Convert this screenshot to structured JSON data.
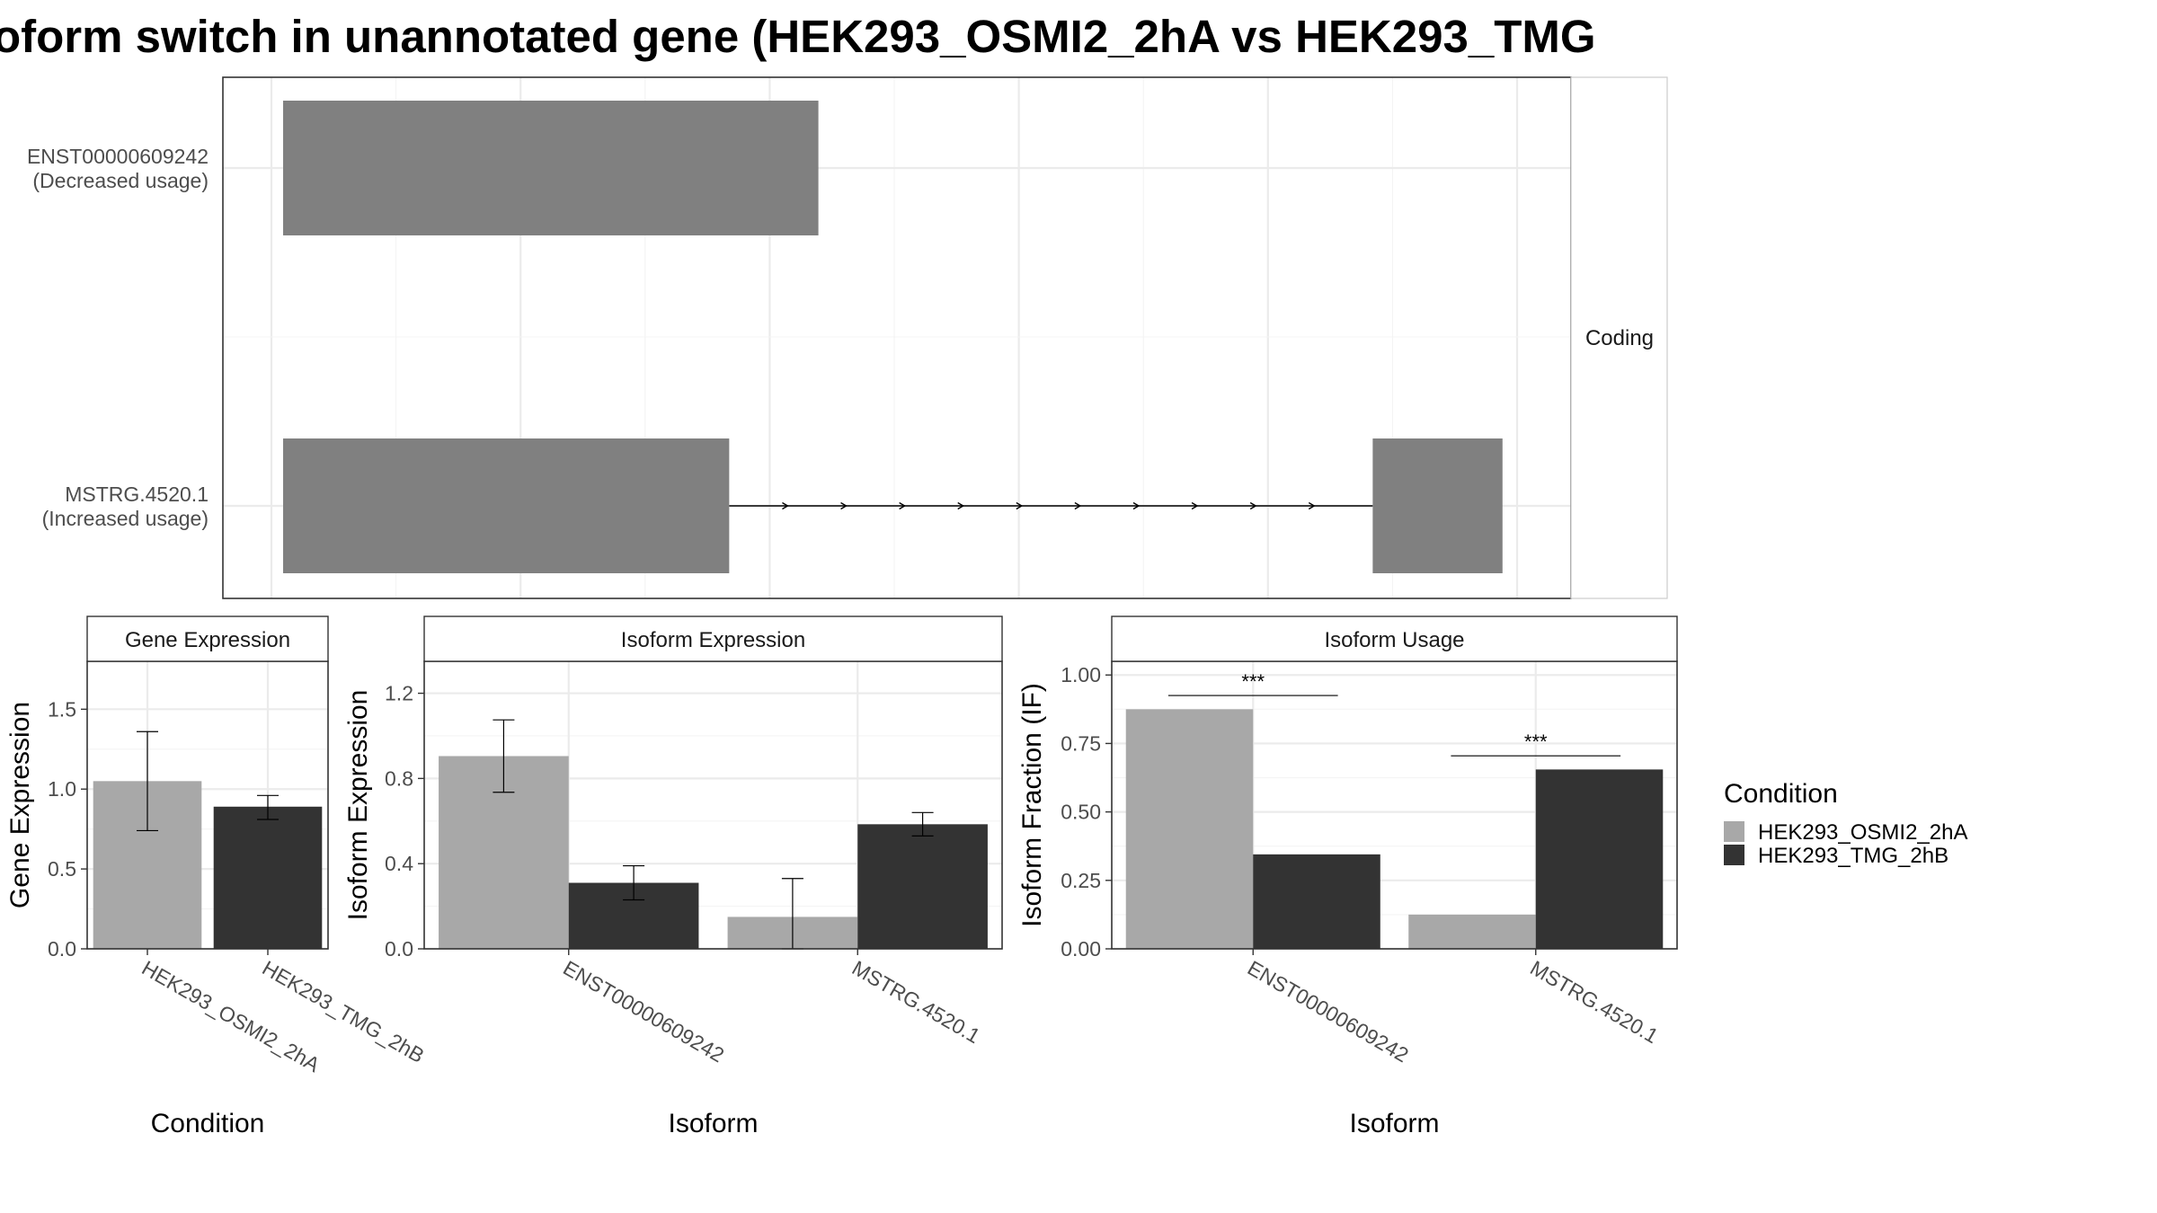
{
  "chart_data": {
    "title": "oform switch in unannotated gene (HEK293_OSMI2_2hA vs HEK293_TMG",
    "colors": {
      "HEK293_OSMI2_2hA": "#a8a8a8",
      "HEK293_TMG_2hB": "#333333",
      "transcript": "#808080"
    },
    "legend": {
      "title": "Condition",
      "position": "right",
      "entries": [
        "HEK293_OSMI2_2hA",
        "HEK293_TMG_2hB"
      ]
    },
    "transcript_plot": {
      "type": "gene-structure",
      "facet_label": "Coding",
      "transcripts": [
        {
          "label_line1": "ENST00000609242",
          "label_line2": "(Decreased usage)",
          "exons": [
            [
              0.0,
              0.4165
            ]
          ],
          "introns": []
        },
        {
          "label_line1": "MSTRG.4520.1",
          "label_line2": "(Increased usage)",
          "exons": [
            [
              0.0,
              0.3471
            ],
            [
              0.8478,
              0.9488
            ]
          ],
          "introns": [
            [
              0.3471,
              0.8478
            ]
          ]
        }
      ]
    },
    "panels": [
      {
        "type": "bar",
        "strip": "Gene Expression",
        "xlabel": "Condition",
        "ylabel": "Gene Expression",
        "ylim": [
          0,
          1.8
        ],
        "yticks": [
          0,
          0.5,
          1,
          1.5
        ],
        "ytick_labels": [
          "0.0",
          "0.5",
          "1.0",
          "1.5"
        ],
        "categories": [
          "HEK293_OSMI2_2hA",
          "HEK293_TMG_2hB"
        ],
        "bars": [
          {
            "category": "HEK293_OSMI2_2hA",
            "condition": "HEK293_OSMI2_2hA",
            "value": 1.05,
            "err": [
              0.74,
              1.36
            ]
          },
          {
            "category": "HEK293_TMG_2hB",
            "condition": "HEK293_TMG_2hB",
            "value": 0.89,
            "err": [
              0.81,
              0.96
            ]
          }
        ],
        "significance": []
      },
      {
        "type": "bar",
        "strip": "Isoform Expression",
        "xlabel": "Isoform",
        "ylabel": "Isoform Expression",
        "ylim": [
          0,
          1.35
        ],
        "yticks": [
          0,
          0.4,
          0.8,
          1.2
        ],
        "ytick_labels": [
          "0.0",
          "0.4",
          "0.8",
          "1.2"
        ],
        "categories": [
          "ENST00000609242",
          "MSTRG.4520.1"
        ],
        "bars": [
          {
            "category": "ENST00000609242",
            "condition": "HEK293_OSMI2_2hA",
            "value": 0.905,
            "err": [
              0.735,
              1.075
            ]
          },
          {
            "category": "ENST00000609242",
            "condition": "HEK293_TMG_2hB",
            "value": 0.31,
            "err": [
              0.23,
              0.39
            ]
          },
          {
            "category": "MSTRG.4520.1",
            "condition": "HEK293_OSMI2_2hA",
            "value": 0.15,
            "err": [
              0.0,
              0.33
            ]
          },
          {
            "category": "MSTRG.4520.1",
            "condition": "HEK293_TMG_2hB",
            "value": 0.585,
            "err": [
              0.53,
              0.64
            ]
          }
        ],
        "significance": []
      },
      {
        "type": "bar",
        "strip": "Isoform Usage",
        "xlabel": "Isoform",
        "ylabel": "Isoform Fraction (IF)",
        "ylim": [
          0,
          1.05
        ],
        "yticks": [
          0,
          0.25,
          0.5,
          0.75,
          1
        ],
        "ytick_labels": [
          "0.00",
          "0.25",
          "0.50",
          "0.75",
          "1.00"
        ],
        "categories": [
          "ENST00000609242",
          "MSTRG.4520.1"
        ],
        "bars": [
          {
            "category": "ENST00000609242",
            "condition": "HEK293_OSMI2_2hA",
            "value": 0.875
          },
          {
            "category": "ENST00000609242",
            "condition": "HEK293_TMG_2hB",
            "value": 0.345
          },
          {
            "category": "MSTRG.4520.1",
            "condition": "HEK293_OSMI2_2hA",
            "value": 0.125
          },
          {
            "category": "MSTRG.4520.1",
            "condition": "HEK293_TMG_2hB",
            "value": 0.655
          }
        ],
        "significance": [
          {
            "category": "ENST00000609242",
            "label": "***",
            "y": 0.925
          },
          {
            "category": "MSTRG.4520.1",
            "label": "***",
            "y": 0.705
          }
        ]
      }
    ]
  }
}
